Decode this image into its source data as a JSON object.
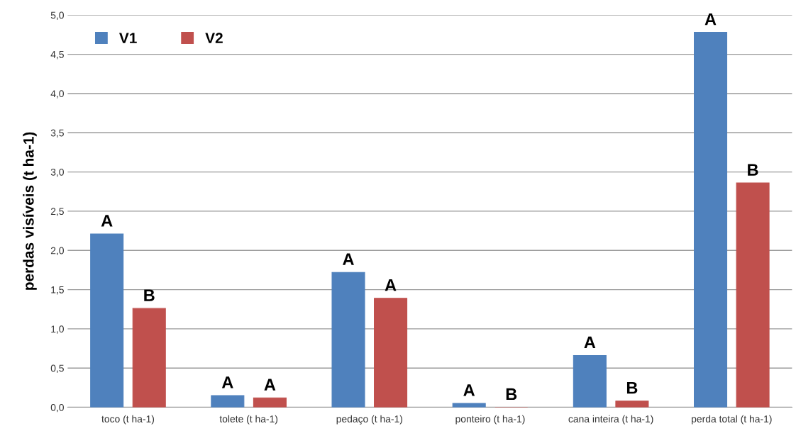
{
  "chart_data": {
    "type": "bar",
    "ylabel": "perdas visíveis (t ha-1)",
    "categories": [
      "toco (t ha-1)",
      "tolete (t ha-1)",
      "pedaço (t ha-1)",
      "ponteiro (t ha-1)",
      "cana inteira (t ha-1)",
      "perda total (t ha-1)"
    ],
    "series": [
      {
        "name": "V1",
        "color": "#4f81bd",
        "values": [
          2.21,
          0.15,
          1.72,
          0.05,
          0.66,
          4.78
        ],
        "value_labels": [
          "A",
          "A",
          "A",
          "A",
          "A",
          "A"
        ]
      },
      {
        "name": "V2",
        "color": "#c0504d",
        "values": [
          1.26,
          0.12,
          1.39,
          0.0,
          0.08,
          2.86
        ],
        "value_labels": [
          "B",
          "A",
          "A",
          "B",
          "B",
          "B"
        ]
      }
    ],
    "ylim": [
      0,
      5
    ],
    "yticks": [
      {
        "value": 0,
        "label": "0,0"
      },
      {
        "value": 0.5,
        "label": "0,5"
      },
      {
        "value": 1,
        "label": "1,0"
      },
      {
        "value": 1.5,
        "label": "1,5"
      },
      {
        "value": 2,
        "label": "2,0"
      },
      {
        "value": 2.5,
        "label": "2,5"
      },
      {
        "value": 3,
        "label": "3,0"
      },
      {
        "value": 3.5,
        "label": "3,5"
      },
      {
        "value": 4,
        "label": "4,0"
      },
      {
        "value": 4.5,
        "label": "4,5"
      },
      {
        "value": 5,
        "label": "5,0"
      }
    ],
    "grid": "y",
    "legend": "top left"
  }
}
